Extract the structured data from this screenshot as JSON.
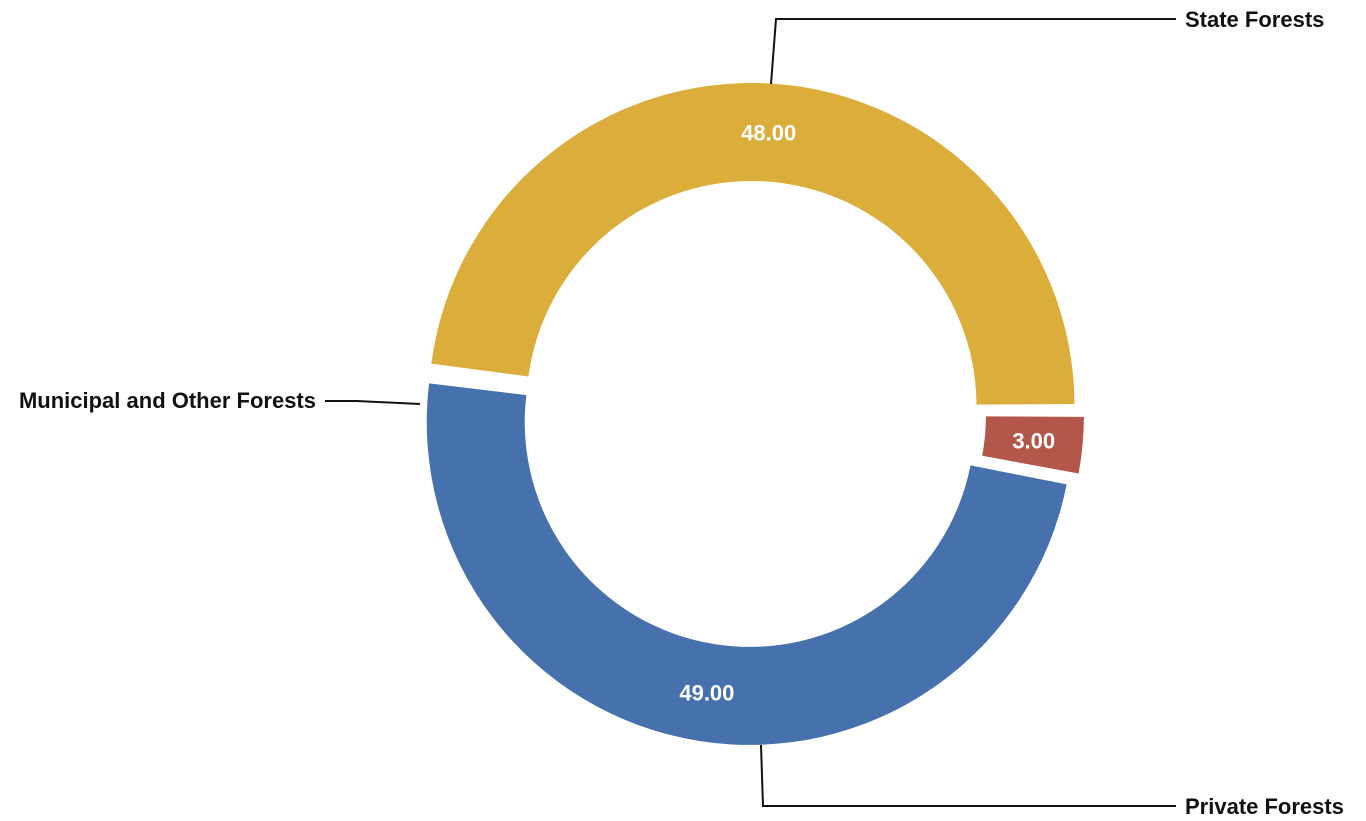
{
  "chart_data": {
    "type": "pie",
    "variant": "donut",
    "categories": [
      "State Forests",
      "Private Forests",
      "Municipal and Other Forests"
    ],
    "values": [
      48.0,
      49.0,
      3.0
    ],
    "value_labels": [
      "48.00",
      "49.00",
      "3.00"
    ],
    "colors": [
      "#dbad3a",
      "#4671ac",
      "#b3574b"
    ],
    "label_outline_colors": [
      "#dbad3a",
      "#4671ac",
      "#b3574b"
    ],
    "start": "3 o'clock, counterclockwise",
    "title": "",
    "legend": "none (labels placed outside with leader lines)"
  }
}
